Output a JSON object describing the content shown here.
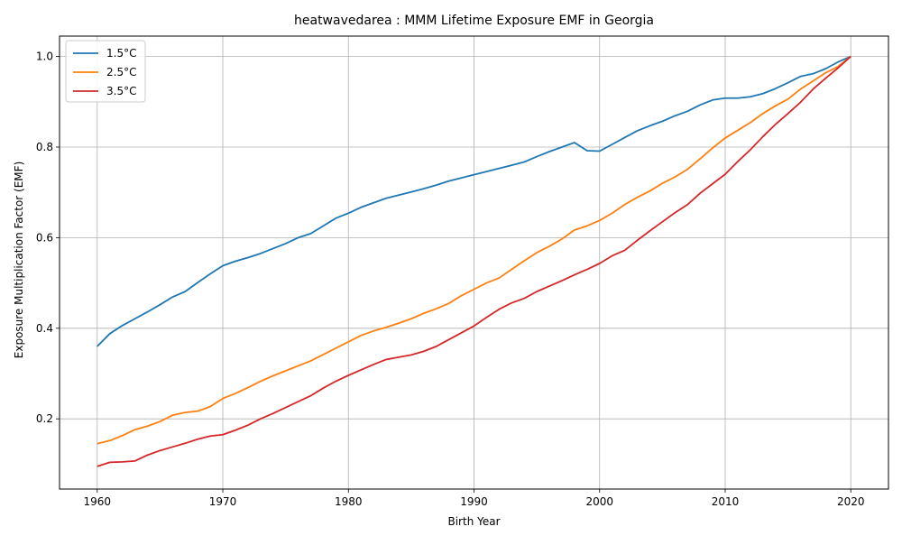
{
  "chart_data": {
    "type": "line",
    "title": "heatwavedarea : MMM Lifetime Exposure EMF in Georgia",
    "xlabel": "Birth Year",
    "ylabel": "Exposure Multiplication Factor (EMF)",
    "xlim": [
      1957,
      2023
    ],
    "ylim": [
      0.045,
      1.045
    ],
    "xticks": [
      1960,
      1970,
      1980,
      1990,
      2000,
      2010,
      2020
    ],
    "yticks": [
      0.2,
      0.4,
      0.6,
      0.8,
      1.0
    ],
    "xtick_labels": [
      "1960",
      "1970",
      "1980",
      "1990",
      "2000",
      "2010",
      "2020"
    ],
    "ytick_labels": [
      "0.2",
      "0.4",
      "0.6",
      "0.8",
      "1.0"
    ],
    "grid": true,
    "legend_position": "top-left",
    "x": [
      1960,
      1961,
      1962,
      1963,
      1964,
      1965,
      1966,
      1967,
      1968,
      1969,
      1970,
      1971,
      1972,
      1973,
      1974,
      1975,
      1976,
      1977,
      1978,
      1979,
      1980,
      1981,
      1982,
      1983,
      1984,
      1985,
      1986,
      1987,
      1988,
      1989,
      1990,
      1991,
      1992,
      1993,
      1994,
      1995,
      1996,
      1997,
      1998,
      1999,
      2000,
      2001,
      2002,
      2003,
      2004,
      2005,
      2006,
      2007,
      2008,
      2009,
      2010,
      2011,
      2012,
      2013,
      2014,
      2015,
      2016,
      2017,
      2018,
      2019,
      2020
    ],
    "series": [
      {
        "name": "1.5°C",
        "color": "#1f77b4",
        "values": [
          0.36,
          0.388,
          0.406,
          0.421,
          0.436,
          0.452,
          0.469,
          0.481,
          0.501,
          0.52,
          0.538,
          0.548,
          0.556,
          0.565,
          0.576,
          0.587,
          0.6,
          0.609,
          0.626,
          0.643,
          0.654,
          0.667,
          0.677,
          0.687,
          0.694,
          0.701,
          0.708,
          0.716,
          0.725,
          0.732,
          0.739,
          0.746,
          0.753,
          0.76,
          0.767,
          0.779,
          0.79,
          0.8,
          0.81,
          0.792,
          0.791,
          0.806,
          0.821,
          0.836,
          0.847,
          0.857,
          0.869,
          0.879,
          0.893,
          0.904,
          0.908,
          0.908,
          0.911,
          0.918,
          0.929,
          0.942,
          0.956,
          0.962,
          0.973,
          0.988,
          1.0
        ]
      },
      {
        "name": "2.5°C",
        "color": "#ff7f0e",
        "values": [
          0.145,
          0.152,
          0.163,
          0.176,
          0.184,
          0.194,
          0.208,
          0.214,
          0.217,
          0.227,
          0.245,
          0.256,
          0.269,
          0.283,
          0.295,
          0.306,
          0.317,
          0.328,
          0.342,
          0.356,
          0.37,
          0.384,
          0.394,
          0.402,
          0.411,
          0.421,
          0.433,
          0.443,
          0.455,
          0.472,
          0.486,
          0.5,
          0.511,
          0.53,
          0.549,
          0.567,
          0.581,
          0.597,
          0.617,
          0.626,
          0.638,
          0.654,
          0.673,
          0.689,
          0.703,
          0.72,
          0.734,
          0.751,
          0.774,
          0.798,
          0.82,
          0.837,
          0.854,
          0.874,
          0.891,
          0.906,
          0.928,
          0.946,
          0.964,
          0.978,
          1.0
        ]
      },
      {
        "name": "3.5°C",
        "color": "#d62728",
        "values": [
          0.095,
          0.104,
          0.105,
          0.107,
          0.12,
          0.13,
          0.138,
          0.146,
          0.155,
          0.162,
          0.165,
          0.175,
          0.186,
          0.2,
          0.212,
          0.225,
          0.238,
          0.251,
          0.268,
          0.283,
          0.296,
          0.308,
          0.32,
          0.331,
          0.336,
          0.341,
          0.349,
          0.36,
          0.375,
          0.39,
          0.405,
          0.424,
          0.442,
          0.456,
          0.466,
          0.481,
          0.493,
          0.505,
          0.518,
          0.53,
          0.543,
          0.56,
          0.572,
          0.594,
          0.615,
          0.635,
          0.655,
          0.673,
          0.698,
          0.719,
          0.74,
          0.768,
          0.794,
          0.823,
          0.85,
          0.874,
          0.899,
          0.928,
          0.952,
          0.975,
          1.0
        ]
      }
    ]
  }
}
